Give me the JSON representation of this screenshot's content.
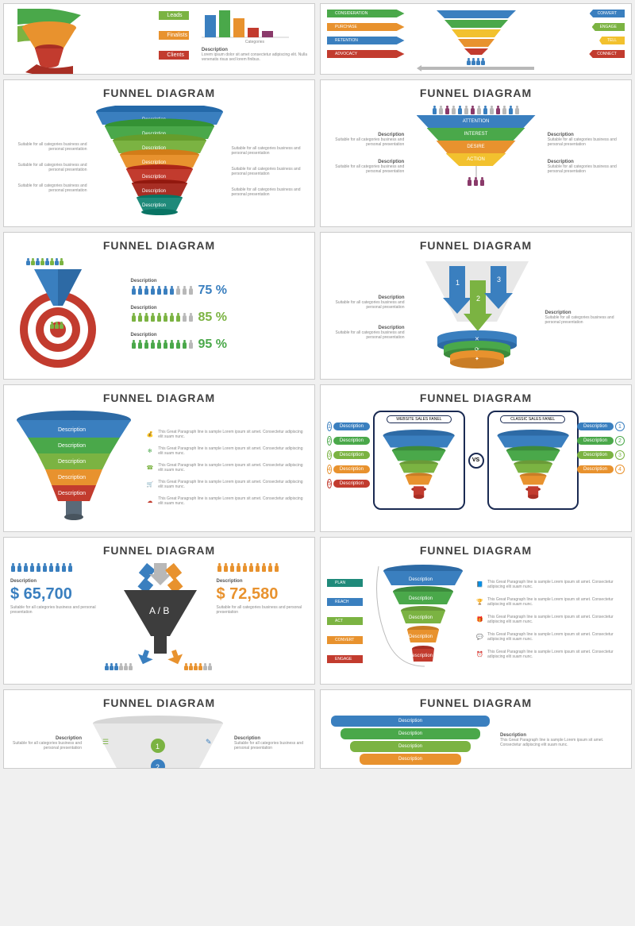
{
  "palette": {
    "blue": "#3a7fbf",
    "green": "#4aa84a",
    "green2": "#7bb342",
    "teal": "#1f8a7a",
    "orange": "#e8922e",
    "orange2": "#f0a030",
    "red": "#c23b2e",
    "dkred": "#a82e24",
    "yellow": "#f2c12e",
    "gray": "#b8b8b8",
    "dkgray": "#3d3d3d",
    "purple": "#8a3a6a",
    "white": "#ffffff"
  },
  "common": {
    "title": "FUNNEL DIAGRAM",
    "desc_word": "Description",
    "sub_text": "Suitable for all categories business and personal presentation",
    "para_text": "This Great Paragraph line is sample Lorem ipsum sit amet. Consectetur adipiscing elit suam nunc."
  },
  "slide1": {
    "labels": [
      "Leads",
      "Finalists",
      "Clients"
    ],
    "colors": [
      "#7bb342",
      "#e8922e",
      "#c23b2e"
    ],
    "chart": {
      "cats": [
        "1",
        "2",
        "3",
        "4",
        "5"
      ],
      "vals": [
        70,
        85,
        60,
        30,
        20
      ],
      "colors": [
        "#3a7fbf",
        "#4aa84a",
        "#e8922e",
        "#c23b2e",
        "#8a3a6a"
      ]
    },
    "desc_title": "Description",
    "desc_body": "Lorem ipsum dolor sit amet consectetur adipiscing elit. Nulla venenatis risus sed lorem finibus."
  },
  "slide2": {
    "left_labels": [
      "CONSIDERATION",
      "PURCHASE",
      "RETENTION",
      "ADVOCACY"
    ],
    "left_colors": [
      "#4aa84a",
      "#e8922e",
      "#3a7fbf",
      "#c23b2e"
    ],
    "right_labels": [
      "CONVERT",
      "ENGAGE",
      "TELL",
      "CONNECT"
    ],
    "right_colors": [
      "#3a7fbf",
      "#7bb342",
      "#f2c12e",
      "#c23b2e"
    ],
    "funnel_colors": [
      "#3a7fbf",
      "#4aa84a",
      "#f2c12e",
      "#e8922e",
      "#c23b2e"
    ]
  },
  "slide3": {
    "bands": [
      "Description",
      "Description",
      "Description",
      "Description",
      "Description",
      "Description",
      "Description"
    ],
    "colors": [
      "#3a7fbf",
      "#4aa84a",
      "#7bb342",
      "#e8922e",
      "#c23b2e",
      "#a82e24",
      "#1f8a7a"
    ]
  },
  "slide4": {
    "stages": [
      "ATTENTION",
      "INTEREST",
      "DESIRE",
      "ACTION"
    ],
    "colors": [
      "#3a7fbf",
      "#4aa84a",
      "#e8922e",
      "#f2c12e"
    ]
  },
  "slide5": {
    "rows": [
      {
        "pct": "75 %",
        "color": "#3a7fbf"
      },
      {
        "pct": "85 %",
        "color": "#7bb342"
      },
      {
        "pct": "95 %",
        "color": "#4aa84a"
      }
    ]
  },
  "slide6": {
    "arrows": [
      "1",
      "2",
      "3"
    ],
    "arrow_colors": [
      "#3a7fbf",
      "#7bb342",
      "#3a7fbf"
    ]
  },
  "slide7": {
    "bands": [
      "Description",
      "Description",
      "Description",
      "Description",
      "Description"
    ],
    "colors": [
      "#3a7fbf",
      "#4aa84a",
      "#7bb342",
      "#e8922e",
      "#c23b2e"
    ]
  },
  "slide8": {
    "left_title": "WEBSITE SALES FANEL",
    "right_title": "CLASSIC SALES FANEL",
    "vs": "VS",
    "nums": [
      "1",
      "2",
      "3",
      "4",
      "5"
    ],
    "num_colors": [
      "#3a7fbf",
      "#4aa84a",
      "#7bb342",
      "#e8922e",
      "#c23b2e"
    ]
  },
  "slide9": {
    "left_amount": "$ 65,700",
    "right_amount": "$ 72,580",
    "ab": "A / B",
    "left_color": "#3a7fbf",
    "right_color": "#e8922e"
  },
  "slide10": {
    "tags": [
      "PLAN",
      "REACH",
      "ACT",
      "CONVERT",
      "ENGAGE"
    ],
    "tag_colors": [
      "#1f8a7a",
      "#3a7fbf",
      "#7bb342",
      "#e8922e",
      "#c23b2e"
    ],
    "band_colors": [
      "#3a7fbf",
      "#4aa84a",
      "#7bb342",
      "#e8922e",
      "#c23b2e"
    ]
  },
  "slide12": {
    "colors": [
      "#3a7fbf",
      "#4aa84a",
      "#7bb342",
      "#e8922e"
    ]
  }
}
